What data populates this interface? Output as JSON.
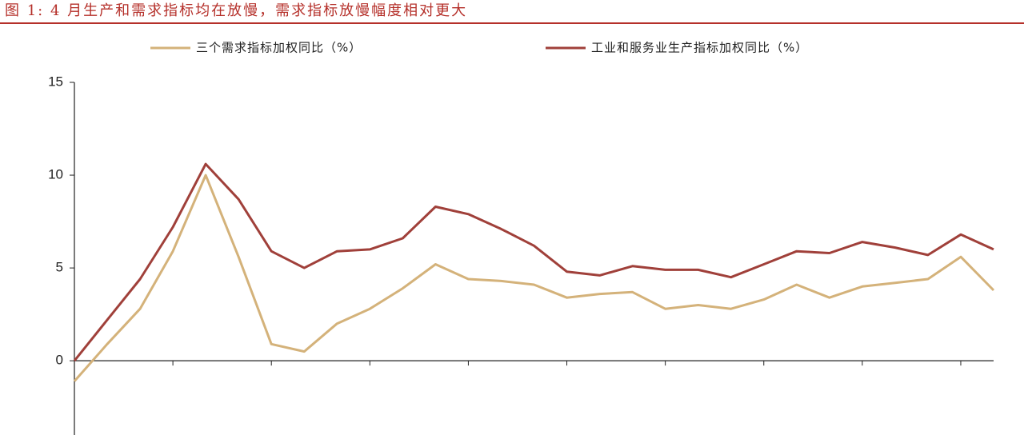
{
  "chart_data": {
    "type": "line",
    "title": "图 1: 4 月生产和需求指标均在放慢，需求指标放慢幅度相对更大",
    "categories": [
      null,
      null,
      null,
      null,
      null,
      null,
      null,
      null,
      null,
      null,
      null,
      null,
      null,
      null,
      null,
      null,
      null,
      null,
      null,
      null,
      null,
      null,
      null,
      null,
      null,
      null,
      null,
      null,
      null
    ],
    "series": [
      {
        "name": "三个需求指标加权同比（%）",
        "color": "#d4b27a",
        "values": [
          -1.1,
          0.9,
          2.8,
          5.9,
          10.0,
          5.6,
          0.9,
          0.5,
          2.0,
          2.8,
          3.9,
          5.2,
          4.4,
          4.3,
          4.1,
          3.4,
          3.6,
          3.7,
          2.8,
          3.0,
          2.8,
          3.3,
          4.1,
          3.4,
          4.0,
          4.2,
          4.4,
          5.6,
          3.8
        ]
      },
      {
        "name": "工业和服务业生产指标加权同比（%）",
        "color": "#a0403a",
        "values": [
          0.0,
          2.2,
          4.4,
          7.2,
          10.6,
          8.7,
          5.9,
          5.0,
          5.9,
          6.0,
          6.6,
          8.3,
          7.9,
          7.1,
          6.2,
          4.8,
          4.6,
          5.1,
          4.9,
          4.9,
          4.5,
          5.2,
          5.9,
          5.8,
          6.4,
          6.1,
          5.7,
          6.8,
          6.0
        ]
      }
    ],
    "ylim": [
      -4,
      15
    ],
    "yticks": [
      0,
      5,
      10,
      15
    ],
    "legend": "top"
  }
}
